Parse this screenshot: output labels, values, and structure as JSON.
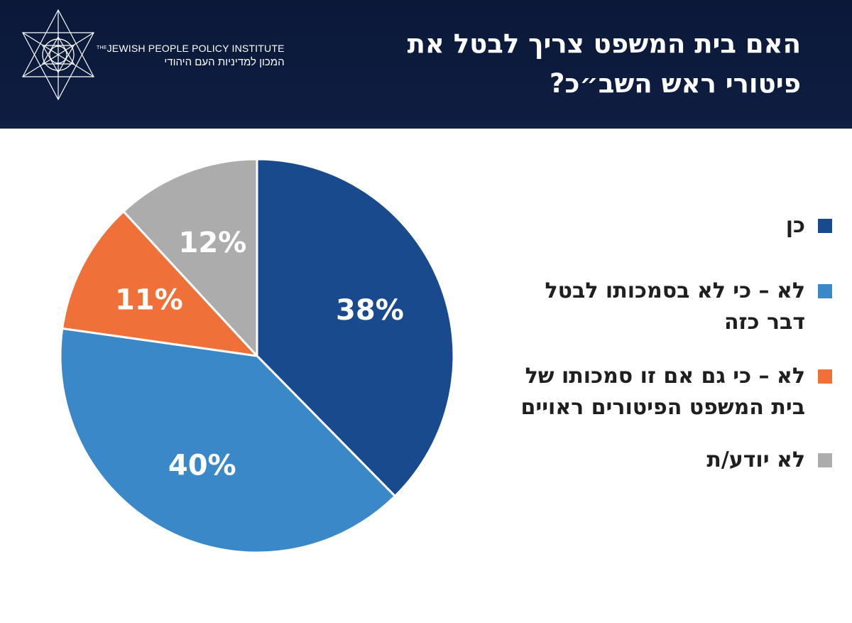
{
  "header": {
    "title": "האם בית המשפט צריך לבטל את פיטורי ראש השב״כ?",
    "logo": {
      "english": "JEWISH PEOPLE POLICY INSTITUTE",
      "english_prefix": "THE",
      "hebrew": "המכון למדיניות העם היהודי",
      "icon": "star-of-david-geometric-logo"
    },
    "background_color": "#0e1d42"
  },
  "chart_data": {
    "type": "pie",
    "title": "האם בית המשפט צריך לבטל את פיטורי ראש השב״כ?",
    "start_angle_deg": 0,
    "direction": "clockwise",
    "slices": [
      {
        "label": "כן",
        "value": 38,
        "display": "38%",
        "color": "#1a4a8e"
      },
      {
        "label": "לא – כי לא בסמכותו לבטל דבר כזה",
        "value": 40,
        "display": "40%",
        "color": "#3b88c8"
      },
      {
        "label": "לא – כי גם אם זו סמכותו של בית המשפט הפיטורים ראויים",
        "value": 11,
        "display": "11%",
        "color": "#f0703a"
      },
      {
        "label": "לא יודע/ת",
        "value": 12,
        "display": "12%",
        "color": "#acacac"
      }
    ],
    "legend_position": "right"
  }
}
